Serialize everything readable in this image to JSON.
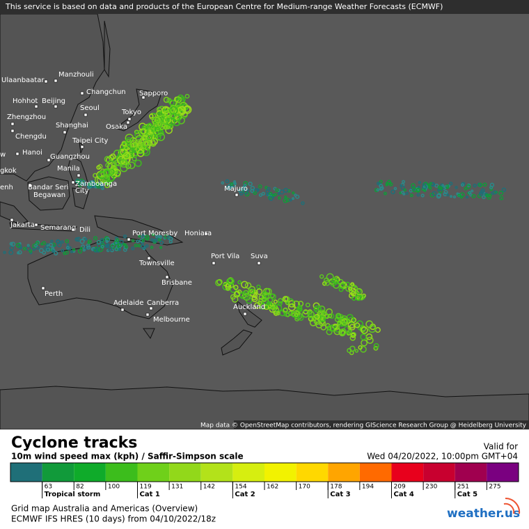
{
  "header": {
    "notice": "This service is based on data and products of the European Centre for Medium-range Weather Forecasts (ECMWF)"
  },
  "map": {
    "cities": [
      "Ulaanbaatar",
      "Manzhouli",
      "Hohhot",
      "Beijing",
      "Changchun",
      "Sapporo",
      "Seoul",
      "Zhengzhou",
      "Tokyo",
      "Shanghai",
      "Osaka",
      "Chengdu",
      "Taipei City",
      "w",
      "Hanoi",
      "Guangzhou",
      "gkok",
      "Manila",
      "Bandar Seri",
      "Begawan",
      "Zamboanga",
      "City",
      "enh",
      "Majuro",
      "Jakarta",
      "Semarang",
      "Dili",
      "Port Moresby",
      "Honiara",
      "Port Vila",
      "Suva",
      "Townsville",
      "Brisbane",
      "Perth",
      "Adelaide",
      "Canberra",
      "Melbourne",
      "Auckland"
    ],
    "attribution": "Map data © OpenStreetMap contributors, rendering GIScience Research Group @ Heidelberg University"
  },
  "legend": {
    "title": "Cyclone tracks",
    "subtitle": "10m wind speed max (kph) / Saffir-Simpson scale",
    "valid_label": "Valid for",
    "valid_time": "Wed 04/20/2022, 10:00pm GMT+04",
    "colors": [
      "#1f6f78",
      "#119a3a",
      "#0fab2a",
      "#3cbd1c",
      "#6fd01a",
      "#92d81a",
      "#b3e21a",
      "#d6ee10",
      "#f2f200",
      "#ffd800",
      "#ffa500",
      "#ff6a00",
      "#e8001c",
      "#c8002f",
      "#a0004f",
      "#7a0080"
    ],
    "ticks": [
      63,
      82,
      100,
      119,
      131,
      142,
      154,
      162,
      170,
      178,
      194,
      209,
      230,
      251,
      275
    ],
    "categories": [
      "Tropical storm",
      "Cat 1",
      "Cat 2",
      "Cat 3",
      "Cat 4",
      "Cat 5"
    ],
    "footer": [
      "Grid map Australia and Americas (Overview)",
      "ECMWF IFS HRES (10 days) from 04/10/2022/18z"
    ],
    "logo": "weather.us"
  }
}
